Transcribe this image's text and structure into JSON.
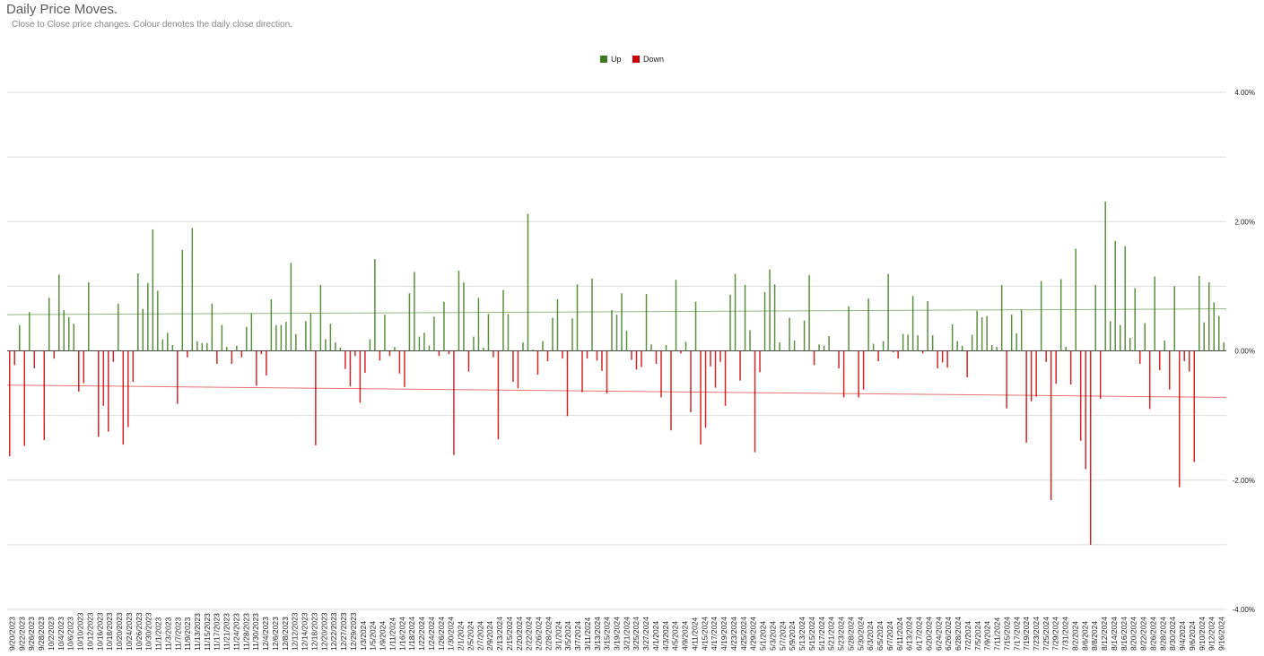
{
  "chart_data": {
    "type": "bar",
    "title": "Daily Price Moves.",
    "subtitle": "Close to Close price changes. Colour denotes the daily close direction.",
    "xlabel": "",
    "ylabel": "",
    "ylim": [
      -4,
      4
    ],
    "yticks": [
      4,
      2,
      0,
      -2,
      -4
    ],
    "ytick_labels": [
      "4.00%",
      "2.00%",
      "0.00%",
      "-2.00%",
      "-4.00%"
    ],
    "grid": true,
    "legend_position": "top-center",
    "series_legend": [
      {
        "name": "Up",
        "color": "#3f7a1e"
      },
      {
        "name": "Down",
        "color": "#cc0000"
      }
    ],
    "x_tick_labels": [
      "9/20/2023",
      "9/22/2023",
      "9/26/2023",
      "9/28/2023",
      "10/2/2023",
      "10/4/2023",
      "10/6/2023",
      "10/10/2023",
      "10/12/2023",
      "10/16/2023",
      "10/18/2023",
      "10/20/2023",
      "10/24/2023",
      "10/26/2023",
      "10/30/2023",
      "11/1/2023",
      "11/3/2023",
      "11/7/2023",
      "11/9/2023",
      "11/13/2023",
      "11/15/2023",
      "11/17/2023",
      "11/21/2023",
      "11/24/2023",
      "11/28/2023",
      "11/30/2023",
      "12/4/2023",
      "12/6/2023",
      "12/8/2023",
      "12/12/2023",
      "12/14/2023",
      "12/18/2023",
      "12/20/2023",
      "12/22/2023",
      "12/27/2023",
      "12/29/2023",
      "1/3/2024",
      "1/5/2024",
      "1/9/2024",
      "1/11/2024",
      "1/16/2024",
      "1/18/2024",
      "1/22/2024",
      "1/24/2024",
      "1/26/2024",
      "1/30/2024",
      "2/1/2024",
      "2/5/2024",
      "2/7/2024",
      "2/9/2024",
      "2/13/2024",
      "2/15/2024",
      "2/20/2024",
      "2/22/2024",
      "2/26/2024",
      "2/28/2024",
      "3/1/2024",
      "3/5/2024",
      "3/7/2024",
      "3/11/2024",
      "3/13/2024",
      "3/15/2024",
      "3/19/2024",
      "3/21/2024",
      "3/25/2024",
      "3/27/2024",
      "4/1/2024",
      "4/3/2024",
      "4/5/2024",
      "4/9/2024",
      "4/11/2024",
      "4/15/2024",
      "4/17/2024",
      "4/19/2024",
      "4/23/2024",
      "4/25/2024",
      "4/29/2024",
      "5/1/2024",
      "5/3/2024",
      "5/7/2024",
      "5/9/2024",
      "5/13/2024",
      "5/15/2024",
      "5/17/2024",
      "5/21/2024",
      "5/23/2024",
      "5/28/2024",
      "5/30/2024",
      "6/3/2024",
      "6/5/2024",
      "6/7/2024",
      "6/11/2024",
      "6/13/2024",
      "6/17/2024",
      "6/20/2024",
      "6/24/2024",
      "6/26/2024",
      "6/28/2024",
      "7/2/2024",
      "7/5/2024",
      "7/9/2024",
      "7/11/2024",
      "7/15/2024",
      "7/17/2024",
      "7/19/2024",
      "7/23/2024",
      "7/25/2024",
      "7/29/2024",
      "7/31/2024",
      "8/2/2024",
      "8/6/2024",
      "8/8/2024",
      "8/12/2024",
      "8/14/2024",
      "8/16/2024",
      "8/20/2024",
      "8/22/2024",
      "8/26/2024",
      "8/28/2024",
      "8/30/2024",
      "9/4/2024",
      "9/6/2024",
      "9/10/2024",
      "9/12/2024",
      "9/16/2024"
    ],
    "values": [
      -1.63,
      -0.22,
      0.4,
      -1.47,
      0.6,
      -0.27,
      0.0,
      -1.38,
      0.82,
      -0.12,
      1.18,
      0.63,
      0.52,
      0.42,
      -0.63,
      -0.5,
      1.06,
      0.0,
      -1.33,
      -0.85,
      -1.25,
      -0.17,
      0.73,
      -1.45,
      -1.18,
      -0.48,
      1.2,
      0.65,
      1.05,
      1.88,
      0.93,
      0.18,
      0.28,
      0.09,
      -0.82,
      1.56,
      -0.1,
      1.9,
      0.15,
      0.12,
      0.12,
      0.73,
      -0.2,
      0.4,
      0.06,
      -0.2,
      0.08,
      -0.1,
      0.37,
      0.58,
      -0.54,
      -0.05,
      -0.38,
      0.8,
      0.4,
      0.4,
      0.45,
      1.36,
      0.26,
      0.0,
      0.46,
      0.58,
      -1.46,
      1.02,
      0.18,
      0.42,
      0.13,
      0.05,
      -0.28,
      -0.55,
      -0.08,
      -0.8,
      -0.34,
      0.18,
      1.42,
      -0.15,
      0.56,
      -0.08,
      0.06,
      -0.35,
      -0.56,
      0.89,
      1.22,
      0.22,
      0.28,
      0.08,
      0.53,
      -0.08,
      0.76,
      -0.05,
      -1.61,
      1.24,
      1.06,
      -0.32,
      0.22,
      0.82,
      0.05,
      0.57,
      -0.1,
      -1.37,
      0.94,
      0.57,
      -0.48,
      -0.58,
      0.13,
      2.12,
      0.02,
      -0.37,
      0.15,
      -0.16,
      0.51,
      0.8,
      -0.12,
      -1.01,
      0.5,
      1.03,
      -0.64,
      -0.12,
      1.12,
      -0.15,
      -0.31,
      -0.66,
      0.63,
      0.56,
      0.89,
      0.31,
      -0.14,
      -0.29,
      -0.25,
      0.88,
      0.1,
      -0.2,
      -0.72,
      0.09,
      -1.23,
      1.1,
      -0.04,
      0.14,
      -0.95,
      0.76,
      -1.45,
      -1.19,
      -0.24,
      -0.57,
      -0.17,
      -0.85,
      0.87,
      1.19,
      -0.46,
      1.02,
      0.32,
      -1.57,
      -0.33,
      0.91,
      1.26,
      1.03,
      0.13,
      0.0,
      0.51,
      0.16,
      0.0,
      0.47,
      1.17,
      -0.22,
      0.1,
      0.08,
      0.23,
      0.0,
      -0.27,
      -0.72,
      0.69,
      0.0,
      -0.72,
      -0.6,
      0.81,
      0.11,
      -0.16,
      0.15,
      1.19,
      -0.02,
      -0.12,
      0.26,
      0.25,
      0.85,
      0.24,
      -0.04,
      0.77,
      0.24,
      -0.27,
      -0.18,
      -0.26,
      0.41,
      0.15,
      0.08,
      -0.41,
      0.25,
      0.62,
      0.52,
      0.54,
      0.09,
      0.06,
      1.02,
      -0.89,
      0.56,
      0.27,
      0.63,
      -1.42,
      -0.78,
      -0.71,
      1.08,
      -0.17,
      -2.31,
      -0.51,
      1.11,
      0.06,
      -0.52,
      1.58,
      -1.39,
      -1.83,
      -3.0,
      1.02,
      -0.74,
      2.31,
      0.46,
      1.7,
      0.4,
      1.62,
      0.2,
      0.97,
      -0.2,
      0.43,
      -0.9,
      1.15,
      -0.3,
      0.16,
      -0.6,
      1.0,
      -2.11,
      -0.16,
      -0.32,
      -1.72,
      1.16,
      0.44,
      1.06,
      0.75,
      0.54,
      0.13
    ],
    "trendlines": [
      {
        "series": "Up",
        "start": 0.56,
        "end": 0.65
      },
      {
        "series": "Down",
        "start": -0.53,
        "end": -0.72
      }
    ]
  }
}
